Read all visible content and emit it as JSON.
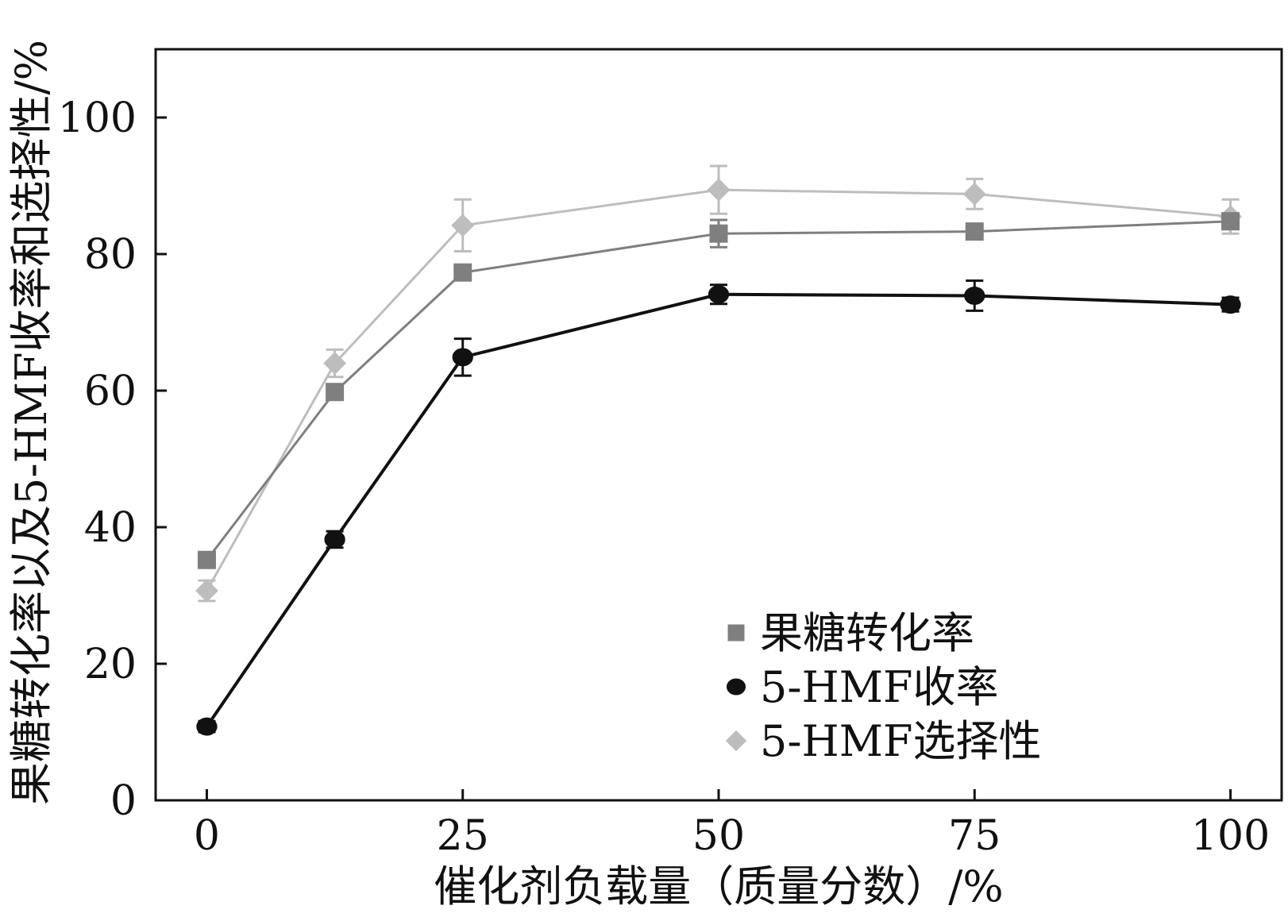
{
  "chart_data": {
    "type": "line",
    "title": "",
    "xlabel": "催化剂负载量（质量分数）/%",
    "ylabel": "果糖转化率以及5-HMF收率和选择性/%",
    "xlim": [
      -5,
      105
    ],
    "ylim": [
      0,
      110
    ],
    "x_ticks": [
      0,
      25,
      50,
      75,
      100
    ],
    "x_tick_labels": [
      "0",
      "25",
      "50",
      "75",
      "100"
    ],
    "y_ticks": [
      0,
      20,
      40,
      60,
      80,
      100
    ],
    "y_tick_labels": [
      "0",
      "20",
      "40",
      "60",
      "80",
      "100"
    ],
    "grid": false,
    "legend_position": "bottom-right",
    "series": [
      {
        "name": "果糖转化率",
        "marker": "square",
        "color": "#7f7f7f",
        "x": [
          0,
          12.5,
          25,
          50,
          75,
          100
        ],
        "y": [
          35.2,
          59.8,
          77.3,
          83.0,
          83.3,
          84.8
        ],
        "err": [
          1.0,
          1.0,
          1.0,
          2.0,
          1.0,
          1.0
        ]
      },
      {
        "name": "5-HMF收率",
        "marker": "circle",
        "color": "#111111",
        "x": [
          0,
          12.5,
          25,
          50,
          75,
          100
        ],
        "y": [
          10.8,
          38.2,
          64.9,
          74.1,
          73.9,
          72.6
        ],
        "err": [
          0.8,
          1.2,
          2.7,
          1.4,
          2.2,
          1.0
        ]
      },
      {
        "name": "5-HMF选择性",
        "marker": "diamond",
        "color": "#bdbdbd",
        "x": [
          0,
          12.5,
          25,
          50,
          75,
          100
        ],
        "y": [
          30.7,
          64.0,
          84.2,
          89.4,
          88.8,
          85.5
        ],
        "err": [
          1.5,
          2.0,
          3.8,
          3.5,
          2.2,
          2.5
        ]
      }
    ]
  }
}
